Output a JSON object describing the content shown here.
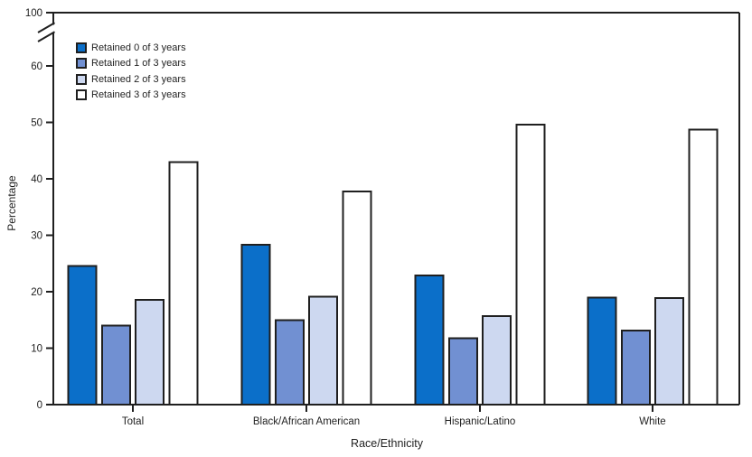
{
  "figure": {
    "y_axis": {
      "label": "Percentage",
      "ticks": [
        0,
        10,
        20,
        30,
        40,
        50,
        60
      ],
      "break_upper_tick": 100,
      "axis_break": true
    },
    "x_axis": {
      "label": "Race/Ethnicity"
    },
    "colors": {
      "axis": "#1f1f1f",
      "background": "#ffffff"
    }
  },
  "chart_data": {
    "type": "bar",
    "title": "",
    "xlabel": "Race/Ethnicity",
    "ylabel": "Percentage",
    "ylim": [
      0,
      60
    ],
    "y_axis_break": {
      "between": [
        60,
        100
      ]
    },
    "grid": false,
    "legend_position": "upper-left",
    "categories": [
      "Total",
      "Black/African American",
      "Hispanic/Latino",
      "White"
    ],
    "series": [
      {
        "name": "Retained 0 of 3 years",
        "color": "#0b6fc9",
        "values": [
          24.6,
          28.3,
          22.9,
          19.0
        ]
      },
      {
        "name": "Retained 1 of 3 years",
        "color": "#7190d2",
        "values": [
          14.0,
          15.0,
          11.8,
          13.1
        ]
      },
      {
        "name": "Retained 2 of 3 years",
        "color": "#cdd8f0",
        "values": [
          18.6,
          19.1,
          15.7,
          18.9
        ]
      },
      {
        "name": "Retained 3 of 3 years",
        "color": "#ffffff",
        "values": [
          43.0,
          37.8,
          49.6,
          48.7
        ]
      }
    ]
  }
}
